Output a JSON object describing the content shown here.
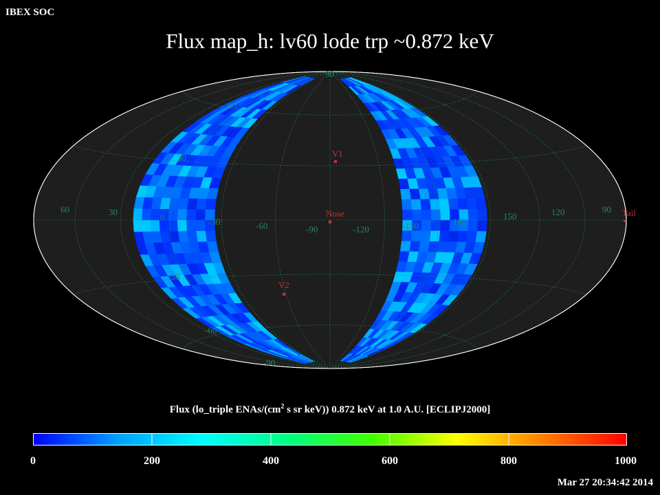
{
  "header": {
    "org": "IBEX SOC",
    "title": "Flux   map_h: lv60 lode trp ~0.872 keV"
  },
  "map": {
    "grid_color": "#1f8a67",
    "label_color": "#1f8a67",
    "marker_color": "#c83232",
    "lat_labels": [
      "90",
      "60",
      "30",
      "0",
      "-30",
      "-60",
      "-90"
    ],
    "lon_labels": [
      "60",
      "30",
      "0",
      "-30",
      "-60",
      "-90",
      "-120",
      "-150",
      "180",
      "150",
      "120",
      "90"
    ],
    "markers": [
      "V1",
      "Nose",
      "V2",
      "Tail"
    ]
  },
  "colorbar": {
    "title_pre": "Flux (lo_triple ENAs/(cm",
    "title_sup": "2",
    "title_post": " s sr keV))  0.872 keV at 1.0 A.U. [ECLIPJ2000]",
    "ticks": [
      "0",
      "200",
      "400",
      "600",
      "800",
      "1000"
    ],
    "stops": [
      "#0000ff",
      "#00a0ff",
      "#00ffff",
      "#00ff80",
      "#40ff00",
      "#ffff00",
      "#ff8000",
      "#ff0000"
    ]
  },
  "footer": {
    "timestamp": "Mar 27 20:34:42 2014"
  }
}
